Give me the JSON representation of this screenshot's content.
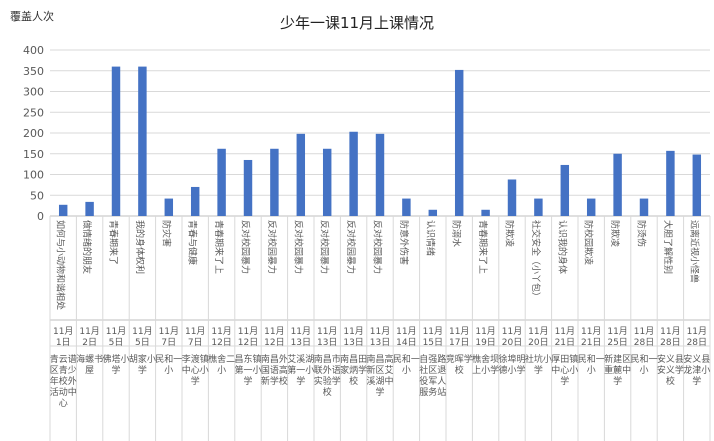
{
  "chart_data": {
    "type": "bar",
    "title": "少年一课11月上课情况",
    "ylabel": "覆盖人次",
    "xlabel": "",
    "ylim": [
      0,
      400
    ],
    "yticks": [
      0,
      50,
      100,
      150,
      200,
      250,
      300,
      350,
      400
    ],
    "grid": true,
    "bar_color": "#4472C4",
    "categories": [
      {
        "topic": "如何与小动物和谐相处",
        "date": "11月1日",
        "place": "青云谱区青少年校外活动中心"
      },
      {
        "topic": "做情绪的朋友",
        "date": "11月2日",
        "place": "海螺书屋"
      },
      {
        "topic": "青春期来了",
        "date": "11月5日",
        "place": "佛塔小学"
      },
      {
        "topic": "我的身体权利",
        "date": "11月5日",
        "place": "胡家小学"
      },
      {
        "topic": "防灾害",
        "date": "11月7日",
        "place": "民和一小"
      },
      {
        "topic": "青春与健康",
        "date": "11月7日",
        "place": "李渡镇中心小学"
      },
      {
        "topic": "青春期来了上",
        "date": "11月12日",
        "place": "樵舍二小"
      },
      {
        "topic": "反对校园暴力",
        "date": "11月12日",
        "place": "昌东镇第一小学"
      },
      {
        "topic": "反对校园暴力",
        "date": "11月12日",
        "place": "南昌外国语高新学校"
      },
      {
        "topic": "反对校园暴力",
        "date": "11月13日",
        "place": "艾溪湖第一小学"
      },
      {
        "topic": "反对校园暴力",
        "date": "11月13日",
        "place": "南昌市联外语实验学校"
      },
      {
        "topic": "反对校园暴力",
        "date": "11月13日",
        "place": "南昌田家炳学校"
      },
      {
        "topic": "反对校园暴力",
        "date": "11月13日",
        "place": "南昌高新区艾溪湖中学"
      },
      {
        "topic": "防意外伤害",
        "date": "11月14日",
        "place": "民和一小"
      },
      {
        "topic": "认识情绪",
        "date": "11月15日",
        "place": "自强路社区退役军人服务站"
      },
      {
        "topic": "防溺水",
        "date": "11月17日",
        "place": "竞晖学校"
      },
      {
        "topic": "青春期来了上",
        "date": "11月19日",
        "place": "樵舍坝上小学"
      },
      {
        "topic": "防欺凌",
        "date": "11月20日",
        "place": "徐埠明德小学"
      },
      {
        "topic": "社交安全（小丫包）",
        "date": "11月20日",
        "place": "社坑小学"
      },
      {
        "topic": "认识我的身体",
        "date": "11月21日",
        "place": "厚田镇中心小学"
      },
      {
        "topic": "防校园欺凌",
        "date": "11月21日",
        "place": "民和一小"
      },
      {
        "topic": "防欺凌",
        "date": "11月25日",
        "place": "新建区重麓中学"
      },
      {
        "topic": "防烫伤",
        "date": "11月28日",
        "place": "民和一小"
      },
      {
        "topic": "大胆了解性别",
        "date": "11月28日",
        "place": "安义县安义学校"
      },
      {
        "topic": "远离近视小怪兽",
        "date": "11月28日",
        "place": "安义县龙津小学"
      }
    ],
    "values": [
      27,
      34,
      360,
      360,
      42,
      70,
      162,
      135,
      162,
      198,
      162,
      203,
      198,
      42,
      15,
      352,
      15,
      88,
      42,
      123,
      42,
      150,
      42,
      157,
      148
    ]
  }
}
